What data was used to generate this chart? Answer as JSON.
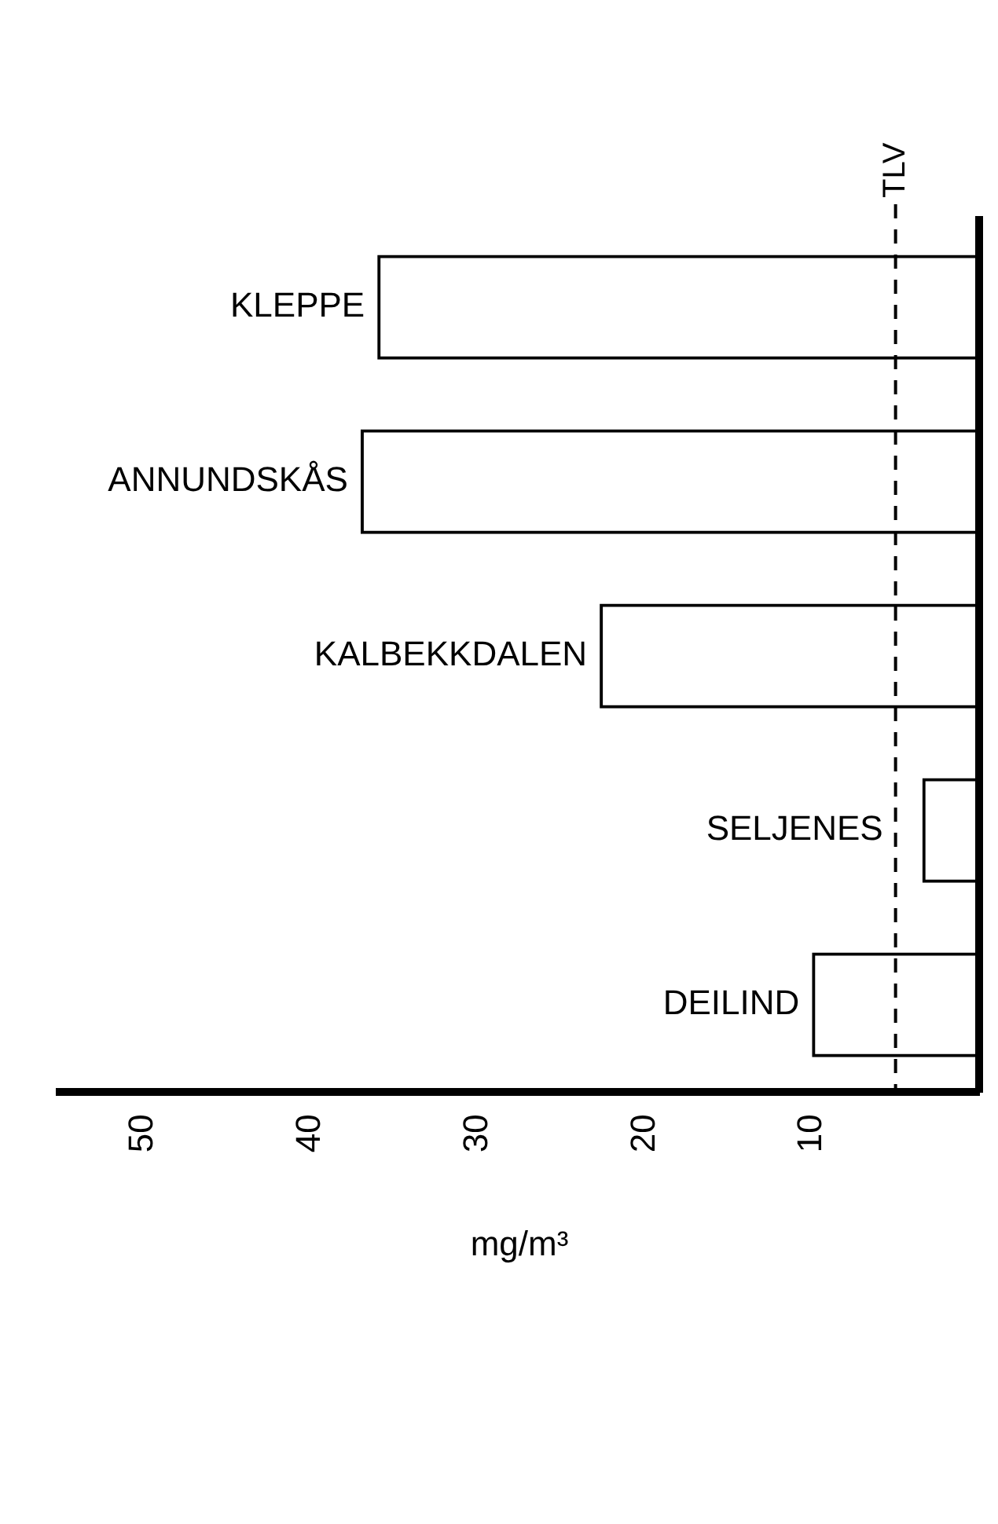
{
  "chart_data": {
    "type": "bar",
    "orientation": "horizontal",
    "xlabel": "mg/m³",
    "categories": [
      "KLEPPE",
      "ANNUNDSKÅS",
      "KALBEKKDALEN",
      "SELJENES",
      "DEILIND"
    ],
    "values": [
      36,
      37,
      22.7,
      3.4,
      10
    ],
    "color": "#000000",
    "xlim": [
      55,
      0
    ],
    "xticks": [
      10,
      20,
      30,
      40,
      50
    ],
    "ref_lines": [
      {
        "axis": "x",
        "value": 5,
        "label": "TLV",
        "line_style": "dashed",
        "color": "#000000"
      }
    ],
    "grid": false,
    "legend": false
  }
}
